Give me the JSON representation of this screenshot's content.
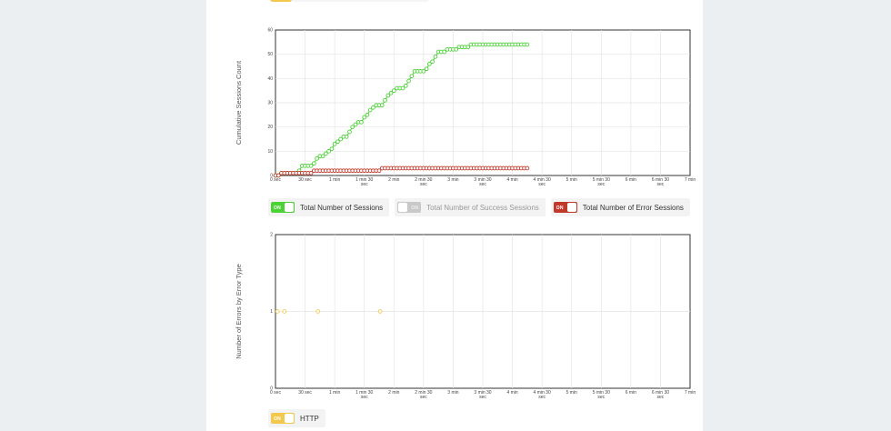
{
  "chart_data": [
    {
      "type": "line",
      "ylabel": "Cumulative Sessions Count",
      "xlabel": "",
      "ylim": [
        0,
        60
      ],
      "yticks": [
        0,
        10,
        20,
        30,
        40,
        50,
        60
      ],
      "xlim_sec": [
        0,
        420
      ],
      "xticks": [
        {
          "sec": 0,
          "label": [
            "0 sec"
          ]
        },
        {
          "sec": 30,
          "label": [
            "30 sec"
          ]
        },
        {
          "sec": 60,
          "label": [
            "1 min"
          ]
        },
        {
          "sec": 90,
          "label": [
            "1 min 30",
            "sec"
          ]
        },
        {
          "sec": 120,
          "label": [
            "2 min"
          ]
        },
        {
          "sec": 150,
          "label": [
            "2 min 30",
            "sec"
          ]
        },
        {
          "sec": 180,
          "label": [
            "3 min"
          ]
        },
        {
          "sec": 210,
          "label": [
            "3 min 30",
            "sec"
          ]
        },
        {
          "sec": 240,
          "label": [
            "4 min"
          ]
        },
        {
          "sec": 270,
          "label": [
            "4 min 30",
            "sec"
          ]
        },
        {
          "sec": 300,
          "label": [
            "5 min"
          ]
        },
        {
          "sec": 330,
          "label": [
            "5 min 30",
            "sec"
          ]
        },
        {
          "sec": 360,
          "label": [
            "6 min"
          ]
        },
        {
          "sec": 390,
          "label": [
            "6 min 30",
            "sec"
          ]
        },
        {
          "sec": 420,
          "label": [
            "7 min"
          ]
        }
      ],
      "grid": true,
      "series": [
        {
          "name": "Total Number of Sessions",
          "color": "#4cd137",
          "x_sec": [
            0,
            3,
            6,
            9,
            12,
            15,
            18,
            21,
            24,
            27,
            30,
            33,
            36,
            39,
            42,
            45,
            48,
            51,
            54,
            57,
            60,
            63,
            66,
            69,
            72,
            75,
            78,
            81,
            84,
            87,
            90,
            93,
            96,
            99,
            102,
            105,
            108,
            111,
            114,
            117,
            120,
            123,
            126,
            129,
            132,
            135,
            138,
            141,
            144,
            147,
            150,
            153,
            156,
            159,
            162,
            165,
            168,
            171,
            174,
            177,
            180,
            183,
            186,
            189,
            192,
            195,
            198,
            201,
            204,
            207,
            210,
            213,
            216,
            219,
            222,
            225,
            228,
            231,
            234,
            237,
            240,
            243,
            246,
            249,
            252,
            255
          ],
          "values": [
            0,
            0,
            1,
            1,
            1,
            1,
            1,
            1,
            2,
            4,
            4,
            4,
            4,
            5,
            7,
            8,
            8,
            9,
            10,
            11,
            13,
            14,
            15,
            16,
            16,
            18,
            20,
            21,
            22,
            22,
            24,
            25,
            27,
            28,
            29,
            29,
            29,
            31,
            33,
            34,
            35,
            36,
            36,
            36,
            37,
            39,
            41,
            43,
            43,
            43,
            43,
            44,
            46,
            47,
            49,
            51,
            51,
            51,
            52,
            52,
            52,
            52,
            53,
            53,
            53,
            53,
            54,
            54,
            54,
            54,
            54,
            54,
            54,
            54,
            54,
            54,
            54,
            54,
            54,
            54,
            54,
            54,
            54,
            54,
            54,
            54
          ]
        },
        {
          "name": "Total Number of Error Sessions",
          "color": "#c0392b",
          "x_sec": [
            0,
            3,
            6,
            9,
            12,
            15,
            18,
            21,
            24,
            27,
            30,
            33,
            36,
            39,
            42,
            45,
            48,
            51,
            54,
            57,
            60,
            63,
            66,
            69,
            72,
            75,
            78,
            81,
            84,
            87,
            90,
            93,
            96,
            99,
            102,
            105,
            108,
            111,
            114,
            117,
            120,
            123,
            126,
            129,
            132,
            135,
            138,
            141,
            144,
            147,
            150,
            153,
            156,
            159,
            162,
            165,
            168,
            171,
            174,
            177,
            180,
            183,
            186,
            189,
            192,
            195,
            198,
            201,
            204,
            207,
            210,
            213,
            216,
            219,
            222,
            225,
            228,
            231,
            234,
            237,
            240,
            243,
            246,
            249,
            252,
            255
          ],
          "values": [
            0,
            0,
            1,
            1,
            1,
            1,
            1,
            1,
            1,
            1,
            1,
            1,
            1,
            2,
            2,
            2,
            2,
            2,
            2,
            2,
            2,
            2,
            2,
            2,
            2,
            2,
            2,
            2,
            2,
            2,
            2,
            2,
            2,
            2,
            2,
            2,
            3,
            3,
            3,
            3,
            3,
            3,
            3,
            3,
            3,
            3,
            3,
            3,
            3,
            3,
            3,
            3,
            3,
            3,
            3,
            3,
            3,
            3,
            3,
            3,
            3,
            3,
            3,
            3,
            3,
            3,
            3,
            3,
            3,
            3,
            3,
            3,
            3,
            3,
            3,
            3,
            3,
            3,
            3,
            3,
            3,
            3,
            3,
            3,
            3,
            3
          ]
        }
      ]
    },
    {
      "type": "scatter",
      "ylabel": "Number of Errors by Error Type",
      "xlabel": "",
      "ylim": [
        0,
        2
      ],
      "yticks": [
        0,
        1,
        2
      ],
      "xlim_sec": [
        0,
        420
      ],
      "grid": true,
      "series": [
        {
          "name": "HTTP",
          "color": "#f2c94c",
          "x_sec": [
            2,
            9,
            43,
            106
          ],
          "values": [
            1,
            1,
            1,
            1
          ]
        }
      ]
    }
  ],
  "legend1": [
    {
      "label": "Total Number of Sessions",
      "state": "ON",
      "on": true,
      "color": "#4cd137"
    },
    {
      "label": "Total Number of Success Sessions",
      "state": "ON",
      "on": false,
      "color": "#c8c8c8"
    },
    {
      "label": "Total Number of Error Sessions",
      "state": "ON",
      "on": true,
      "color": "#c0392b"
    }
  ],
  "legend2": [
    {
      "label": "HTTP",
      "state": "ON",
      "on": true,
      "color": "#f2c94c"
    }
  ]
}
